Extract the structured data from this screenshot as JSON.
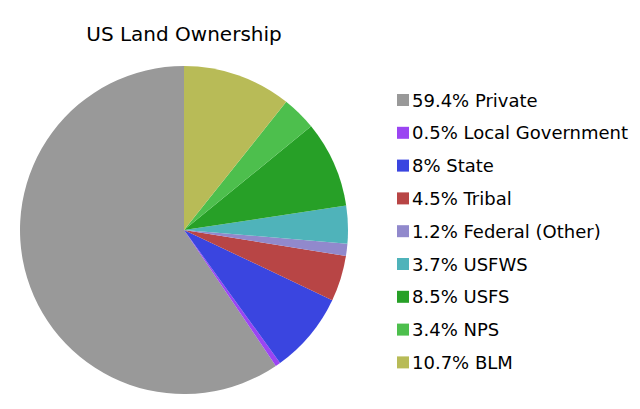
{
  "chart_data": {
    "type": "pie",
    "title": "US Land Ownership",
    "categories": [
      "59.4% Private",
      "0.5% Local Government",
      "8% State",
      "4.5% Tribal",
      "1.2% Federal (Other)",
      "3.7% USFWS",
      "8.5% USFS",
      "3.4% NPS",
      "10.7% BLM"
    ],
    "values": [
      59.4,
      0.5,
      8,
      4.5,
      1.2,
      3.7,
      8.5,
      3.4,
      10.7
    ],
    "colors": [
      "#999999",
      "#9b45f2",
      "#3a45e0",
      "#b84545",
      "#9189cc",
      "#4fb3ba",
      "#27a027",
      "#4dbf4d",
      "#b8bb57"
    ],
    "legend": "right"
  }
}
